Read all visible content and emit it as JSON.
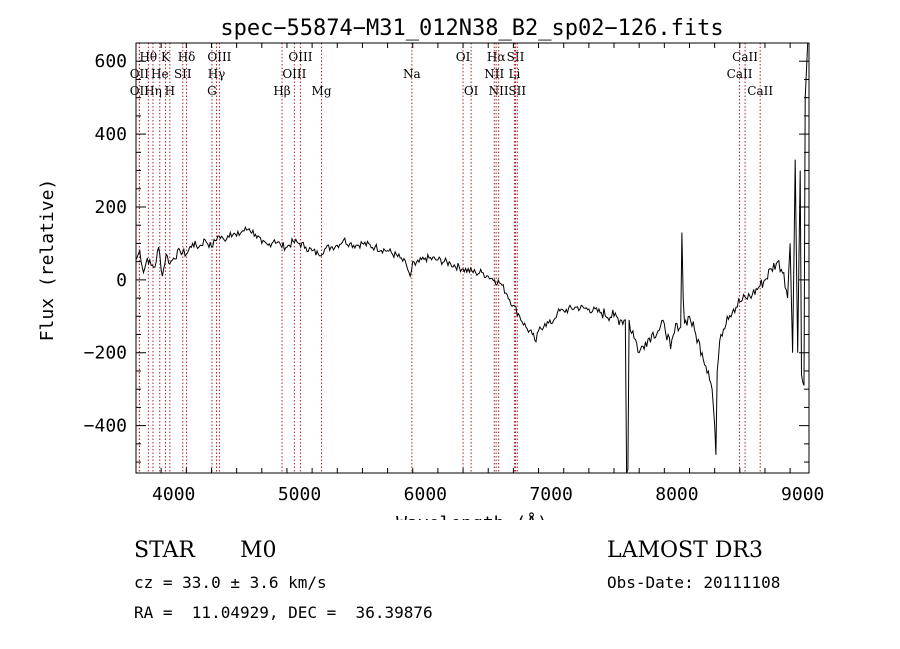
{
  "chart_data": {
    "type": "line",
    "title": "spec−55874−M31_012N38_B2_sp02−126.fits",
    "xlabel": "Wavelength (Å)",
    "ylabel": "Flux (relative)",
    "xlim": [
      3700,
      9050
    ],
    "ylim": [
      -530,
      650
    ],
    "xticks": [
      4000,
      5000,
      6000,
      7000,
      8000,
      9000
    ],
    "yticks": [
      -400,
      -200,
      0,
      200,
      400,
      600
    ],
    "grid": false,
    "series": [
      {
        "x": [
          3700,
          3730,
          3760,
          3790,
          3820,
          3850,
          3880,
          3910,
          3940,
          3970,
          4000,
          4050,
          4100,
          4150,
          4200,
          4250,
          4300,
          4350,
          4400,
          4450,
          4500,
          4550,
          4600,
          4650,
          4700,
          4750,
          4800,
          4850,
          4900,
          4950,
          5000,
          5050,
          5100,
          5150,
          5200,
          5250,
          5300,
          5350,
          5400,
          5450,
          5500,
          5600,
          5700,
          5800,
          5850,
          5880,
          5890,
          5900,
          5920,
          6000,
          6100,
          6200,
          6300,
          6400,
          6450,
          6500,
          6550,
          6600,
          6650,
          6700,
          6750,
          6800,
          6850,
          6880,
          6900,
          6950,
          7000,
          7050,
          7100,
          7200,
          7300,
          7400,
          7500,
          7550,
          7590,
          7600,
          7610,
          7620,
          7630,
          7650,
          7700,
          7750,
          7800,
          7850,
          7900,
          7950,
          8000,
          8030,
          8040,
          8050,
          8060,
          8100,
          8150,
          8200,
          8250,
          8280,
          8300,
          8310,
          8320,
          8350,
          8400,
          8450,
          8500,
          8550,
          8600,
          8650,
          8700,
          8750,
          8800,
          8850,
          8880,
          8900,
          8920,
          8940,
          8960,
          8980,
          8990,
          9000,
          9010,
          9020,
          9040
        ],
        "values": [
          55,
          80,
          20,
          60,
          40,
          35,
          90,
          10,
          70,
          45,
          60,
          80,
          70,
          100,
          90,
          110,
          90,
          120,
          110,
          130,
          120,
          135,
          140,
          125,
          100,
          95,
          110,
          95,
          90,
          105,
          100,
          90,
          80,
          70,
          85,
          90,
          95,
          110,
          100,
          95,
          100,
          90,
          80,
          60,
          40,
          10,
          25,
          50,
          40,
          60,
          55,
          45,
          30,
          20,
          20,
          10,
          0,
          -10,
          -40,
          -70,
          -100,
          -130,
          -150,
          -170,
          -140,
          -120,
          -120,
          -90,
          -85,
          -75,
          -80,
          -90,
          -100,
          -110,
          -110,
          -530,
          -520,
          -110,
          -140,
          -140,
          -200,
          -170,
          -150,
          -140,
          -120,
          -190,
          -120,
          -130,
          130,
          -50,
          -120,
          -100,
          -150,
          -200,
          -250,
          -300,
          -400,
          -480,
          -250,
          -150,
          -100,
          -80,
          -60,
          -50,
          -40,
          -20,
          0,
          30,
          50,
          20,
          -50,
          100,
          -200,
          330,
          -200,
          300,
          -260,
          -280,
          -290,
          500,
          650
        ]
      }
    ],
    "lines": [
      {
        "name": "Hθ",
        "x": 3798,
        "row": 0
      },
      {
        "name": "K",
        "x": 3934,
        "row": 0
      },
      {
        "name": "Hδ",
        "x": 4102,
        "row": 0
      },
      {
        "name": "OIII",
        "x": 4363,
        "row": 0
      },
      {
        "name": "OIII",
        "x": 5007,
        "row": 0
      },
      {
        "name": "OI",
        "x": 6300,
        "row": 0
      },
      {
        "name": "Hα",
        "x": 6563,
        "row": 0
      },
      {
        "name": "SII",
        "x": 6717,
        "row": 0
      },
      {
        "name": "CaII",
        "x": 8542,
        "row": 0
      },
      {
        "name": "OII",
        "x": 3727,
        "row": 1
      },
      {
        "name": "He",
        "x": 3889,
        "row": 1
      },
      {
        "name": "SII",
        "x": 4072,
        "row": 1
      },
      {
        "name": "Hγ",
        "x": 4340,
        "row": 1
      },
      {
        "name": "OIII",
        "x": 4959,
        "row": 1
      },
      {
        "name": "Na",
        "x": 5893,
        "row": 1
      },
      {
        "name": "NII",
        "x": 6548,
        "row": 1
      },
      {
        "name": "Li",
        "x": 6708,
        "row": 1
      },
      {
        "name": "CaII",
        "x": 8498,
        "row": 1
      },
      {
        "name": "OII",
        "x": 3727,
        "row": 2
      },
      {
        "name": "Hη",
        "x": 3835,
        "row": 2
      },
      {
        "name": "H",
        "x": 3969,
        "row": 2
      },
      {
        "name": "G",
        "x": 4304,
        "row": 2
      },
      {
        "name": "Hβ",
        "x": 4861,
        "row": 2
      },
      {
        "name": "Mg",
        "x": 5175,
        "row": 2
      },
      {
        "name": "OI",
        "x": 6364,
        "row": 2
      },
      {
        "name": "NII",
        "x": 6583,
        "row": 2
      },
      {
        "name": "SII",
        "x": 6731,
        "row": 2
      },
      {
        "name": "CaII",
        "x": 8662,
        "row": 2
      }
    ]
  },
  "info": {
    "object_class": "STAR",
    "subclass": "M0",
    "survey": "LAMOST DR3",
    "cz": "cz = 33.0 ± 3.6 km/s",
    "obs_date": "Obs-Date: 20111108",
    "coords": "RA =  11.04929, DEC =  36.39876"
  },
  "colors": {
    "line_marker": "#b22222",
    "spectrum": "#000000"
  }
}
